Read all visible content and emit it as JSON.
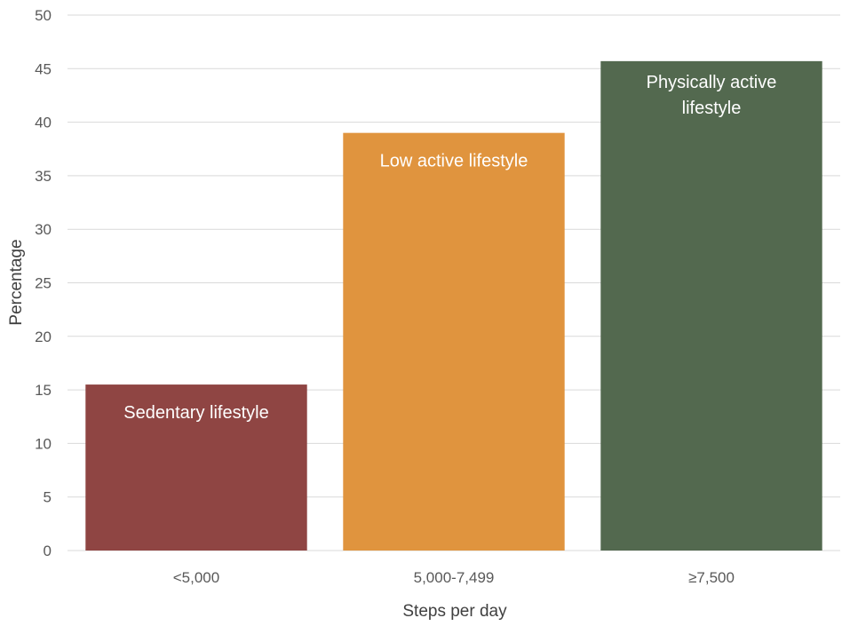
{
  "chart_data": {
    "type": "bar",
    "categories": [
      "<5,000",
      "5,000-7,499",
      "≥7,500"
    ],
    "values": [
      15.5,
      39.0,
      45.7
    ],
    "bar_labels": [
      [
        "Sedentary lifestyle"
      ],
      [
        "Low active lifestyle"
      ],
      [
        "Physically active",
        "lifestyle"
      ]
    ],
    "colors": [
      "#8F4543",
      "#E0943E",
      "#53694F"
    ],
    "xlabel": "Steps per day",
    "ylabel": "Percentage",
    "ylim": [
      0,
      50
    ],
    "yticks": [
      0,
      5,
      10,
      15,
      20,
      25,
      30,
      35,
      40,
      45,
      50
    ],
    "grid": true
  }
}
